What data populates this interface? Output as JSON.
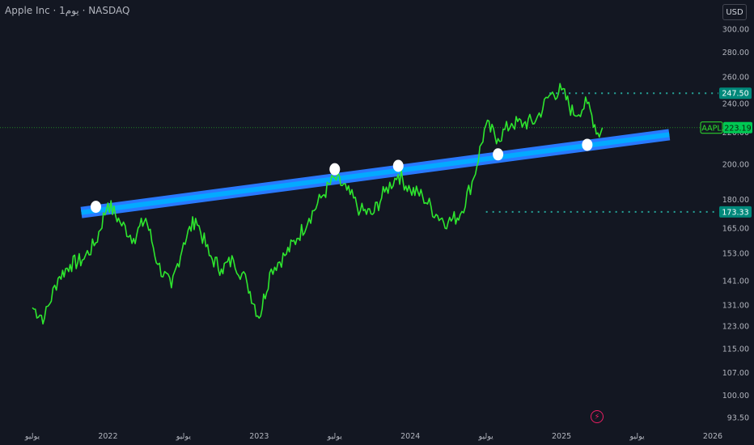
{
  "header": {
    "title": "Apple Inc · 1يوم · NASDAQ",
    "currency_button": "USD"
  },
  "colors": {
    "background": "#131722",
    "price_line": "#2ee62e",
    "trend_band": "#2979ff",
    "trend_band_inner": "#00b0ff",
    "level_line": "#26a69a",
    "tag_green": "#2e7d32",
    "tag_last": "#00c853",
    "touch_point": "#ffffff"
  },
  "icons": {
    "flash": "lightning-icon"
  },
  "chart_data": {
    "type": "line",
    "symbol": "AAPL",
    "last_price_label": "223.19",
    "y_scale": "log",
    "y_ticks": [
      "300.00",
      "280.00",
      "260.00",
      "240.00",
      "220.00",
      "200.00",
      "180.00",
      "165.00",
      "153.00",
      "141.00",
      "131.00",
      "123.00",
      "115.00",
      "107.00",
      "100.00",
      "93.50"
    ],
    "x_ticks": [
      "يوليو",
      "2022",
      "يوليو",
      "2023",
      "يوليو",
      "2024",
      "يوليو",
      "2025",
      "يوليو",
      "2026"
    ],
    "levels": [
      {
        "label": "247.50",
        "value": 247.5
      },
      {
        "label": "173.33",
        "value": 173.33
      }
    ],
    "series": [
      {
        "x": [
          2021.5,
          2021.58,
          2021.67,
          2021.75,
          2021.83,
          2021.92,
          2022.0,
          2022.08,
          2022.17,
          2022.25,
          2022.33,
          2022.42,
          2022.5,
          2022.58,
          2022.67,
          2022.75,
          2022.83,
          2022.92,
          2023.0,
          2023.08,
          2023.17,
          2023.25,
          2023.33,
          2023.42,
          2023.5,
          2023.58,
          2023.67,
          2023.75,
          2023.83,
          2023.92,
          2024.0,
          2024.08,
          2024.17,
          2024.25,
          2024.33,
          2024.42,
          2024.5,
          2024.58,
          2024.67,
          2024.75,
          2024.83,
          2024.92,
          2025.0,
          2025.08,
          2025.17,
          2025.25
        ],
        "values": [
          130,
          126,
          142,
          148,
          150,
          158,
          178,
          168,
          160,
          170,
          148,
          138,
          158,
          170,
          152,
          146,
          150,
          140,
          126,
          146,
          152,
          160,
          170,
          182,
          192,
          185,
          174,
          172,
          184,
          194,
          185,
          182,
          172,
          168,
          172,
          192,
          225,
          216,
          226,
          226,
          228,
          246,
          250,
          232,
          240,
          217
        ]
      }
    ],
    "trendline": {
      "x": [
        2021.92,
        2025.67
      ],
      "values": [
        174,
        218
      ]
    },
    "touch_points": [
      {
        "x": 2021.92,
        "value": 176
      },
      {
        "x": 2023.5,
        "value": 197
      },
      {
        "x": 2023.92,
        "value": 199
      },
      {
        "x": 2024.58,
        "value": 206
      },
      {
        "x": 2025.17,
        "value": 212
      }
    ]
  }
}
